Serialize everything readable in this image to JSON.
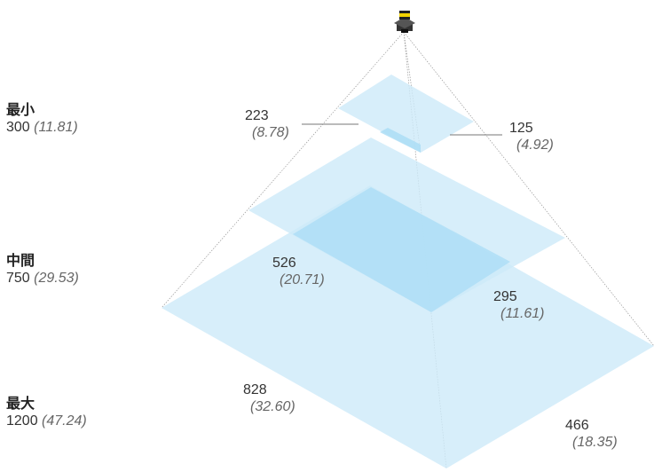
{
  "levels": [
    {
      "title": "最小",
      "value": "300",
      "inches": "(11.81)"
    },
    {
      "title": "中間",
      "value": "750",
      "inches": "(29.53)"
    },
    {
      "title": "最大",
      "value": "1200",
      "inches": "(47.24)"
    }
  ],
  "dimensions": {
    "small_w": {
      "mm": "223",
      "in": "(8.78)"
    },
    "small_d": {
      "mm": "125",
      "in": "(4.92)"
    },
    "medium_w": {
      "mm": "526",
      "in": "(20.71)"
    },
    "medium_d": {
      "mm": "295",
      "in": "(11.61)"
    },
    "large_w": {
      "mm": "828",
      "in": "(32.60)"
    },
    "large_d": {
      "mm": "466",
      "in": "(18.35)"
    }
  },
  "icons": {
    "device": "camera-device-icon"
  },
  "colors": {
    "plane_fill": "#cdeaf9",
    "overlap_fill": "#a9dcf5",
    "guide_line": "#999999",
    "device_body": "#333333",
    "device_accent": "#f2d200"
  }
}
